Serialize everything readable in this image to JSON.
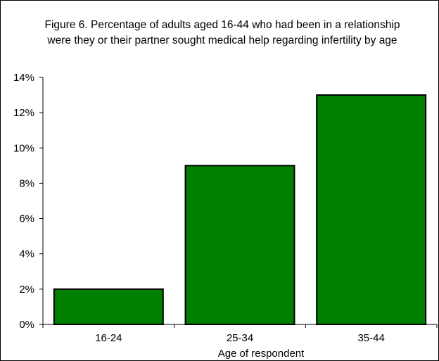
{
  "chart_data": {
    "type": "bar",
    "title": "Figure 6. Percentage of adults aged 16-44 who had been in a relationship were they or their partner sought medical help regarding infertility by age",
    "xlabel": "Age of respondent",
    "ylabel": "",
    "categories": [
      "16-24",
      "25-34",
      "35-44"
    ],
    "values": [
      2,
      9,
      13
    ],
    "value_suffix": "%",
    "ylim": [
      0,
      14
    ],
    "y_ticks": [
      0,
      2,
      4,
      6,
      8,
      10,
      12,
      14
    ],
    "grid": false,
    "legend": "none",
    "bar_color": "#007f00",
    "bar_outline": "#000000"
  }
}
